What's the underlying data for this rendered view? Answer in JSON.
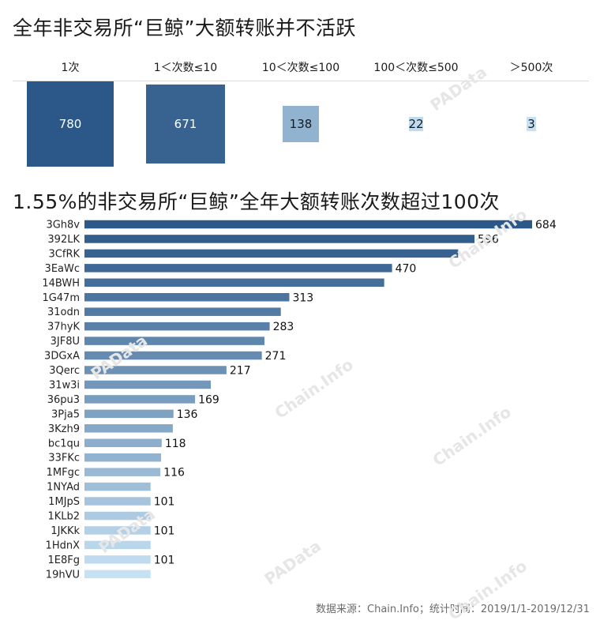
{
  "title_top": "全年非交易所“巨鲸”大额转账并不活跃",
  "title_bottom": "1.55%的非交易所“巨鲸”全年大额转账次数超过100次",
  "source": "数据来源：Chain.Info；统计时间：2019/1/1-2019/12/31",
  "watermarks": [
    "PAData",
    "Chain.Info"
  ],
  "colors": {
    "dark": "#2b5888",
    "light": "#c6e1f4",
    "box_mid": "#3d6b9e",
    "box_light": "#a9cfec"
  },
  "chart_data": [
    {
      "type": "table",
      "title": "全年非交易所“巨鲸”大额转账并不活跃",
      "categories": [
        "1次",
        "1＜次数≤10",
        "10＜次数≤100",
        "100＜次数≤500",
        "＞500次"
      ],
      "values": [
        780,
        671,
        138,
        22,
        3
      ],
      "value_labels": [
        "780",
        "671",
        "138",
        "22",
        "3"
      ]
    },
    {
      "type": "bar",
      "orientation": "horizontal",
      "title": "1.55%的非交易所“巨鲸”全年大额转账次数超过100次",
      "categories": [
        "3Gh8v",
        "392LK",
        "3CfRK",
        "3EaWc",
        "14BWH",
        "1G47m",
        "31odn",
        "37hyK",
        "3JF8U",
        "3DGxA",
        "3Qerc",
        "31w3i",
        "36pu3",
        "3Pja5",
        "3Kzh9",
        "bc1qu",
        "33FKc",
        "1MFgc",
        "1NYAd",
        "1MJpS",
        "1KLb2",
        "1JKKk",
        "1HdnX",
        "1E8Fg",
        "19hVU"
      ],
      "values": [
        684,
        596,
        571,
        470,
        458,
        313,
        300,
        283,
        275,
        271,
        217,
        193,
        169,
        136,
        135,
        118,
        117,
        116,
        101,
        101,
        101,
        101,
        101,
        101,
        101
      ],
      "data_labels": [
        "684",
        "596",
        "",
        "470",
        "",
        "313",
        "",
        "283",
        "",
        "271",
        "217",
        "",
        "169",
        "136",
        "",
        "118",
        "",
        "116",
        "",
        "101",
        "",
        "101",
        "",
        "101",
        ""
      ],
      "xlim": [
        0,
        700
      ],
      "grid": false,
      "legend": "none"
    }
  ]
}
